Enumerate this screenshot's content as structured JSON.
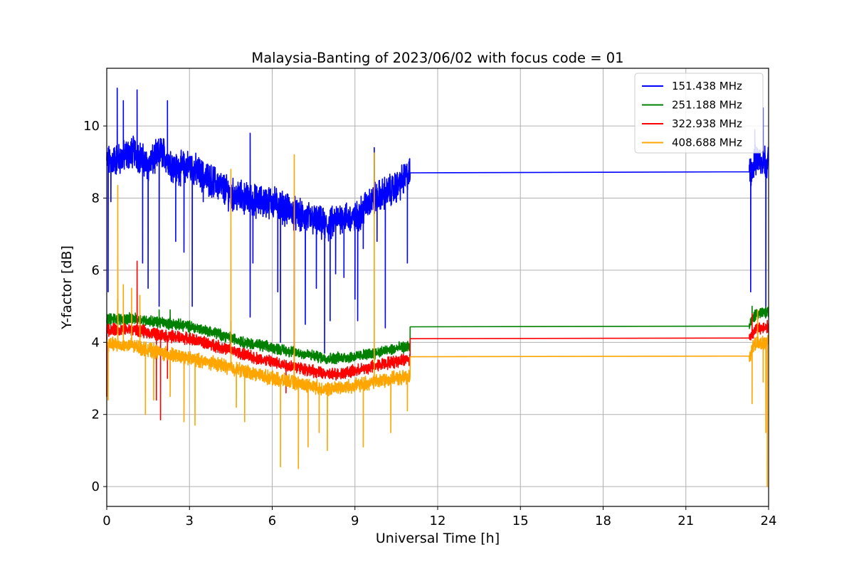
{
  "chart_data": {
    "type": "line",
    "title": "Malaysia-Banting of 2023/06/02 with focus code = 01",
    "xlabel": "Universal Time [h]",
    "ylabel": "Y-factor [dB]",
    "xlim": [
      0,
      24
    ],
    "ylim": [
      -0.55,
      11.6
    ],
    "x_ticks": [
      0,
      3,
      6,
      9,
      12,
      15,
      18,
      21,
      24
    ],
    "y_ticks": [
      0,
      2,
      4,
      6,
      8,
      10
    ],
    "grid": true,
    "legend_position": "top-right",
    "series": [
      {
        "name": "151.438 MHz",
        "color": "#0000ff",
        "baseline": [
          [
            0,
            9.0
          ],
          [
            0.5,
            9.1
          ],
          [
            1,
            9.3
          ],
          [
            1.5,
            8.9
          ],
          [
            2,
            9.3
          ],
          [
            2.5,
            8.8
          ],
          [
            3,
            8.9
          ],
          [
            3.5,
            8.6
          ],
          [
            4,
            8.4
          ],
          [
            4.5,
            8.1
          ],
          [
            5,
            8.0
          ],
          [
            5.5,
            7.9
          ],
          [
            6,
            7.9
          ],
          [
            6.5,
            7.7
          ],
          [
            7,
            7.5
          ],
          [
            7.5,
            7.4
          ],
          [
            8,
            7.2
          ],
          [
            8.5,
            7.5
          ],
          [
            9,
            7.4
          ],
          [
            9.5,
            7.9
          ],
          [
            10,
            8.1
          ],
          [
            10.5,
            8.3
          ],
          [
            11.0,
            8.7
          ],
          [
            23.3,
            8.73
          ],
          [
            23.6,
            9.1
          ],
          [
            24,
            9.0
          ]
        ],
        "noise": 0.35,
        "spikes": [
          [
            0.05,
            5.4
          ],
          [
            0.15,
            7.9
          ],
          [
            0.38,
            11.05
          ],
          [
            0.6,
            10.7
          ],
          [
            1.1,
            11.0
          ],
          [
            1.3,
            6.2
          ],
          [
            1.5,
            5.5
          ],
          [
            1.9,
            5.0
          ],
          [
            2.2,
            10.7
          ],
          [
            2.5,
            6.8
          ],
          [
            2.8,
            6.5
          ],
          [
            3.1,
            5.0
          ],
          [
            3.5,
            7.9
          ],
          [
            4.5,
            7.7
          ],
          [
            5.2,
            4.7
          ],
          [
            5.2,
            9.8
          ],
          [
            5.3,
            6.2
          ],
          [
            6.2,
            5.4
          ],
          [
            6.3,
            4.0
          ],
          [
            6.8,
            2.9
          ],
          [
            7.2,
            4.5
          ],
          [
            7.6,
            5.5
          ],
          [
            7.9,
            3.7
          ],
          [
            8.1,
            4.6
          ],
          [
            8.3,
            5.9
          ],
          [
            8.6,
            5.8
          ],
          [
            9.0,
            5.2
          ],
          [
            9.1,
            4.6
          ],
          [
            9.3,
            6.6
          ],
          [
            9.7,
            9.4
          ],
          [
            9.8,
            6.8
          ],
          [
            10.1,
            4.4
          ],
          [
            10.9,
            6.2
          ],
          [
            23.35,
            5.4
          ],
          [
            23.5,
            9.9
          ],
          [
            23.8,
            10.5
          ],
          [
            23.9,
            4.7
          ]
        ]
      },
      {
        "name": "251.188 MHz",
        "color": "#008000",
        "baseline": [
          [
            0,
            4.65
          ],
          [
            1,
            4.65
          ],
          [
            2,
            4.55
          ],
          [
            3,
            4.45
          ],
          [
            4,
            4.25
          ],
          [
            5,
            4.0
          ],
          [
            6,
            3.85
          ],
          [
            7,
            3.7
          ],
          [
            8,
            3.55
          ],
          [
            9,
            3.6
          ],
          [
            10,
            3.75
          ],
          [
            11.0,
            3.9
          ],
          [
            11.0,
            4.43
          ],
          [
            23.3,
            4.45
          ],
          [
            23.5,
            4.75
          ],
          [
            24,
            4.85
          ]
        ],
        "noise": 0.12,
        "spikes": [
          [
            0.4,
            5.2
          ],
          [
            1.9,
            4.9
          ],
          [
            2.3,
            4.9
          ],
          [
            3.0,
            4.1
          ],
          [
            4.5,
            4.6
          ],
          [
            23.4,
            5.0
          ]
        ]
      },
      {
        "name": "322.938 MHz",
        "color": "#ff0000",
        "baseline": [
          [
            0,
            4.35
          ],
          [
            1,
            4.35
          ],
          [
            2,
            4.2
          ],
          [
            3,
            4.1
          ],
          [
            4,
            3.9
          ],
          [
            5,
            3.65
          ],
          [
            6,
            3.45
          ],
          [
            7,
            3.3
          ],
          [
            8,
            3.1
          ],
          [
            9,
            3.2
          ],
          [
            10,
            3.4
          ],
          [
            11.0,
            3.55
          ],
          [
            11.0,
            4.1
          ],
          [
            23.3,
            4.12
          ],
          [
            23.5,
            4.35
          ],
          [
            24,
            4.45
          ]
        ],
        "noise": 0.13,
        "spikes": [
          [
            0.0,
            2.5
          ],
          [
            1.1,
            6.25
          ],
          [
            1.8,
            2.4
          ],
          [
            1.95,
            1.85
          ],
          [
            2.2,
            3.0
          ],
          [
            4.5,
            3.9
          ],
          [
            6.5,
            2.6
          ],
          [
            23.4,
            4.8
          ]
        ]
      },
      {
        "name": "408.688 MHz",
        "color": "#ffa500",
        "baseline": [
          [
            0,
            3.95
          ],
          [
            1,
            3.9
          ],
          [
            2,
            3.7
          ],
          [
            3,
            3.55
          ],
          [
            4,
            3.4
          ],
          [
            5,
            3.2
          ],
          [
            6,
            3.0
          ],
          [
            7,
            2.85
          ],
          [
            8,
            2.7
          ],
          [
            9,
            2.8
          ],
          [
            10,
            2.95
          ],
          [
            11.0,
            3.05
          ],
          [
            11.0,
            3.6
          ],
          [
            23.3,
            3.62
          ],
          [
            23.5,
            3.95
          ],
          [
            24,
            4.0
          ]
        ],
        "noise": 0.15,
        "spikes": [
          [
            0.05,
            2.4
          ],
          [
            0.4,
            8.35
          ],
          [
            0.6,
            5.6
          ],
          [
            0.9,
            5.5
          ],
          [
            1.2,
            5.3
          ],
          [
            1.4,
            2.0
          ],
          [
            1.7,
            2.4
          ],
          [
            2.3,
            2.5
          ],
          [
            2.8,
            1.8
          ],
          [
            3.2,
            1.7
          ],
          [
            4.5,
            8.8
          ],
          [
            4.7,
            2.2
          ],
          [
            5.0,
            1.8
          ],
          [
            6.3,
            0.55
          ],
          [
            6.8,
            9.2
          ],
          [
            6.95,
            0.5
          ],
          [
            7.3,
            1.1
          ],
          [
            7.7,
            1.5
          ],
          [
            8.0,
            1.0
          ],
          [
            9.3,
            1.1
          ],
          [
            9.7,
            9.25
          ],
          [
            10.3,
            1.5
          ],
          [
            10.9,
            2.1
          ],
          [
            23.4,
            2.3
          ],
          [
            23.6,
            4.9
          ],
          [
            23.8,
            2.9
          ],
          [
            23.95,
            0.0
          ],
          [
            23.9,
            1.5
          ]
        ]
      }
    ]
  }
}
